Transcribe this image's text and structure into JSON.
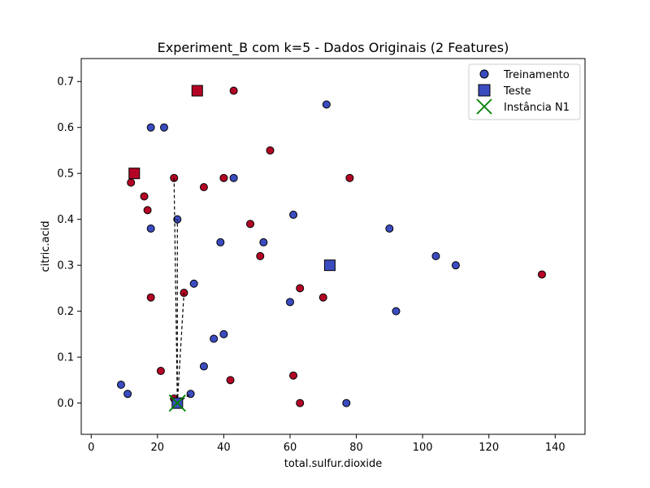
{
  "chart_data": {
    "type": "scatter",
    "title": "Experiment_B com k=5 - Dados Originais (2 Features)",
    "xlabel": "total.sulfur.dioxide",
    "ylabel": "citric.acid",
    "xlim": [
      -3,
      149
    ],
    "ylim": [
      -0.068,
      0.75
    ],
    "xticks": [
      0,
      20,
      40,
      60,
      80,
      100,
      120,
      140
    ],
    "yticks": [
      0.0,
      0.1,
      0.2,
      0.3,
      0.4,
      0.5,
      0.6,
      0.7
    ],
    "grid": false,
    "legend": {
      "placement": "top-right",
      "entries": [
        {
          "label": "Treinamento",
          "marker": "circle"
        },
        {
          "label": "Teste",
          "marker": "square"
        },
        {
          "label": "Instância N1",
          "marker": "x"
        }
      ]
    },
    "colors": {
      "class_blue": "#3b4cc0",
      "class_red": "#b40426",
      "highlight": "#008000",
      "edge": "#000000",
      "legend_blue": "#3b4cc0"
    },
    "series": [
      {
        "name": "Treinamento",
        "marker": "circle",
        "points": [
          {
            "x": 18,
            "y": 0.6,
            "c": "blue"
          },
          {
            "x": 22,
            "y": 0.6,
            "c": "blue"
          },
          {
            "x": 71,
            "y": 0.65,
            "c": "blue"
          },
          {
            "x": 43,
            "y": 0.68,
            "c": "red"
          },
          {
            "x": 54,
            "y": 0.55,
            "c": "red"
          },
          {
            "x": 25,
            "y": 0.49,
            "c": "red"
          },
          {
            "x": 40,
            "y": 0.49,
            "c": "red"
          },
          {
            "x": 43,
            "y": 0.49,
            "c": "blue"
          },
          {
            "x": 78,
            "y": 0.49,
            "c": "red"
          },
          {
            "x": 12,
            "y": 0.48,
            "c": "red"
          },
          {
            "x": 34,
            "y": 0.47,
            "c": "red"
          },
          {
            "x": 16,
            "y": 0.45,
            "c": "red"
          },
          {
            "x": 17,
            "y": 0.42,
            "c": "red"
          },
          {
            "x": 26,
            "y": 0.4,
            "c": "blue"
          },
          {
            "x": 61,
            "y": 0.41,
            "c": "blue"
          },
          {
            "x": 48,
            "y": 0.39,
            "c": "red"
          },
          {
            "x": 18,
            "y": 0.38,
            "c": "blue"
          },
          {
            "x": 90,
            "y": 0.38,
            "c": "blue"
          },
          {
            "x": 39,
            "y": 0.35,
            "c": "blue"
          },
          {
            "x": 52,
            "y": 0.35,
            "c": "blue"
          },
          {
            "x": 51,
            "y": 0.32,
            "c": "red"
          },
          {
            "x": 104,
            "y": 0.32,
            "c": "blue"
          },
          {
            "x": 110,
            "y": 0.3,
            "c": "blue"
          },
          {
            "x": 136,
            "y": 0.28,
            "c": "red"
          },
          {
            "x": 31,
            "y": 0.26,
            "c": "blue"
          },
          {
            "x": 63,
            "y": 0.25,
            "c": "red"
          },
          {
            "x": 28,
            "y": 0.24,
            "c": "red"
          },
          {
            "x": 18,
            "y": 0.23,
            "c": "red"
          },
          {
            "x": 70,
            "y": 0.23,
            "c": "red"
          },
          {
            "x": 60,
            "y": 0.22,
            "c": "blue"
          },
          {
            "x": 92,
            "y": 0.2,
            "c": "blue"
          },
          {
            "x": 40,
            "y": 0.15,
            "c": "blue"
          },
          {
            "x": 37,
            "y": 0.14,
            "c": "blue"
          },
          {
            "x": 34,
            "y": 0.08,
            "c": "blue"
          },
          {
            "x": 21,
            "y": 0.07,
            "c": "red"
          },
          {
            "x": 61,
            "y": 0.06,
            "c": "red"
          },
          {
            "x": 42,
            "y": 0.05,
            "c": "red"
          },
          {
            "x": 9,
            "y": 0.04,
            "c": "blue"
          },
          {
            "x": 11,
            "y": 0.02,
            "c": "blue"
          },
          {
            "x": 30,
            "y": 0.02,
            "c": "blue"
          },
          {
            "x": 25,
            "y": 0.01,
            "c": "red"
          },
          {
            "x": 63,
            "y": 0.0,
            "c": "red"
          },
          {
            "x": 77,
            "y": 0.0,
            "c": "blue"
          }
        ]
      },
      {
        "name": "Teste",
        "marker": "square",
        "points": [
          {
            "x": 32,
            "y": 0.68,
            "c": "red"
          },
          {
            "x": 13,
            "y": 0.5,
            "c": "red"
          },
          {
            "x": 72,
            "y": 0.3,
            "c": "blue"
          },
          {
            "x": 26,
            "y": 0.0,
            "c": "blue"
          }
        ]
      },
      {
        "name": "Instância N1",
        "marker": "x",
        "points": [
          {
            "x": 26,
            "y": 0.0,
            "c": "highlight"
          }
        ]
      }
    ],
    "neighbor_lines": {
      "from": {
        "x": 26,
        "y": 0.0
      },
      "to": [
        {
          "x": 25,
          "y": 0.49
        },
        {
          "x": 26,
          "y": 0.4
        },
        {
          "x": 28,
          "y": 0.24
        },
        {
          "x": 25,
          "y": 0.01
        },
        {
          "x": 30,
          "y": 0.02
        }
      ]
    }
  }
}
